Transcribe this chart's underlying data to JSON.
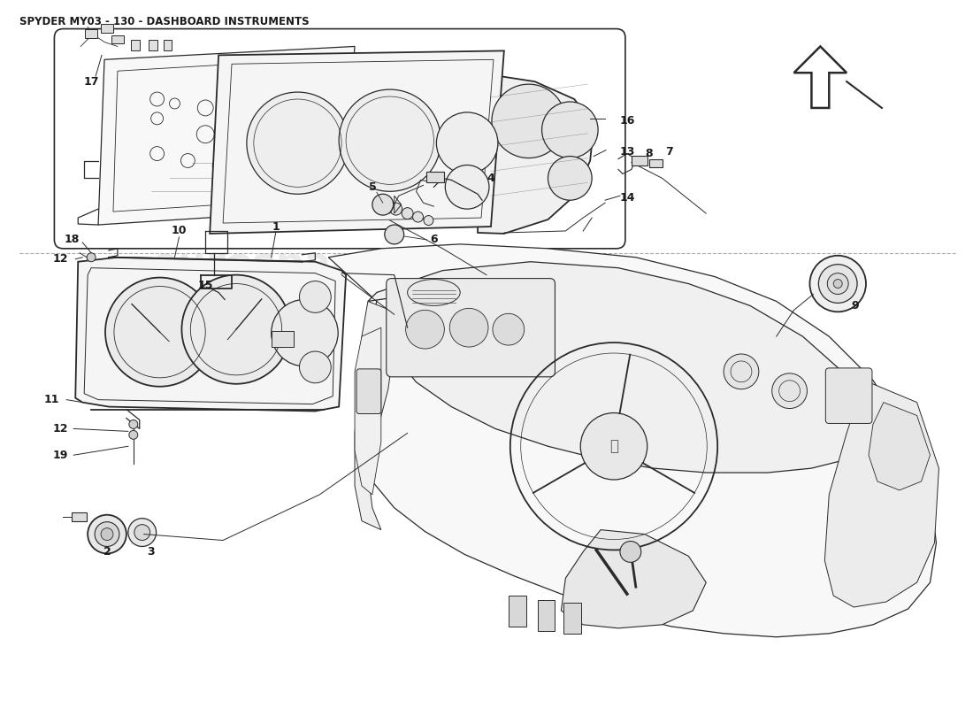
{
  "title": "SPYDER MY03 - 130 - DASHBOARD INSTRUMENTS",
  "title_fontsize": 8.5,
  "title_fontweight": "bold",
  "bg_color": "#ffffff",
  "line_color": "#2a2a2a",
  "text_color": "#1a1a1a",
  "watermark_color": "#cccccc",
  "fig_width": 11.0,
  "fig_height": 8.0,
  "dpi": 100
}
